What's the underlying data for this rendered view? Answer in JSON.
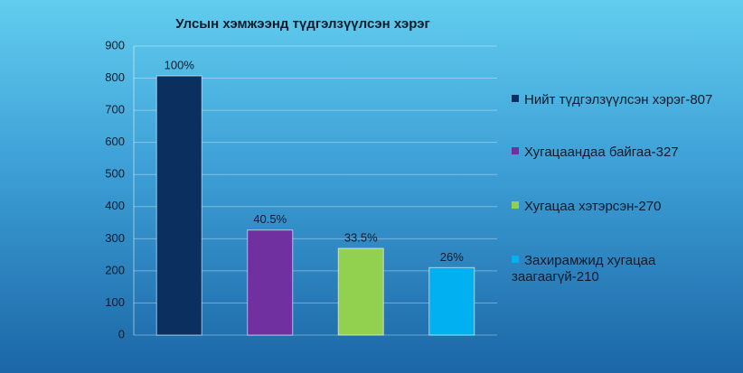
{
  "chart_data": {
    "type": "bar",
    "title": "Улсын хэмжээнд түдгэлзүүлсэн хэрэг",
    "series": [
      {
        "name": "Нийт түдгэлзүүлсэн хэрэг-807",
        "color": "#0b2f5e",
        "values": [
          807
        ],
        "value_labels": [
          "100%"
        ]
      },
      {
        "name": "Хугацаандаа байгаа-327",
        "color": "#7030a0",
        "values": [
          327
        ],
        "value_labels": [
          "40.5%"
        ]
      },
      {
        "name": "Хугацаа хэтэрсэн-270",
        "color": "#92d050",
        "values": [
          270
        ],
        "value_labels": [
          "33.5%"
        ]
      },
      {
        "name": "Захирамжид хугацаа заагаагүй-210",
        "color": "#00b0f0",
        "values": [
          210
        ],
        "value_labels": [
          "26%"
        ]
      }
    ],
    "ylim": [
      0,
      900
    ],
    "yticks": [
      0,
      100,
      200,
      300,
      400,
      500,
      600,
      700,
      800,
      900
    ],
    "grid": true
  }
}
